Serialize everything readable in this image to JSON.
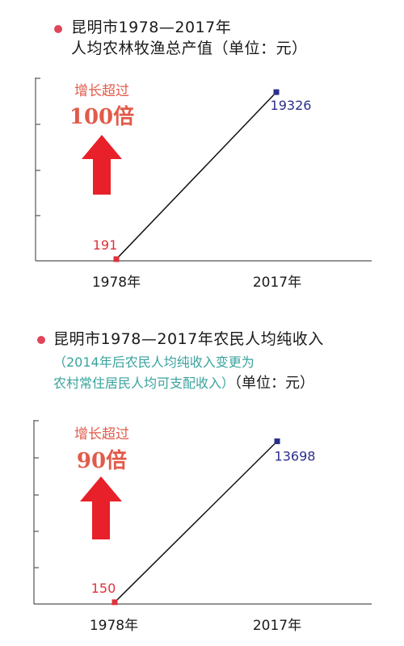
{
  "panels": [
    {
      "title_line1": "昆明市1978—2017年",
      "title_line2": "人均农林牧渔总产值（单位：元）",
      "growth_label_top": "增长超过",
      "growth_label_bottom": "100倍"
    },
    {
      "title_line1": "昆明市1978—2017年农民人均纯收入",
      "note_line1": "（2014年后农民人均纯收入变更为",
      "note_line2": "农村常住居民人均可支配收入）",
      "unit": "（单位：元）",
      "growth_label_top": "增长超过",
      "growth_label_bottom": "90倍"
    }
  ],
  "colors": {
    "bullet": "#e0465a",
    "start_point": "#e0303a",
    "end_point": "#2b2f8a",
    "arrow": "#e8202a",
    "note": "#3aa39e"
  },
  "chart_data": [
    {
      "type": "line",
      "title": "昆明市1978—2017年人均农林牧渔总产值（单位：元）",
      "categories": [
        "1978年",
        "2017年"
      ],
      "values": [
        191,
        19326
      ],
      "ylim": [
        0,
        21000
      ],
      "grid": false
    },
    {
      "type": "line",
      "title": "昆明市1978—2017年农民人均纯收入（单位：元）",
      "categories": [
        "1978年",
        "2017年"
      ],
      "values": [
        150,
        13698
      ],
      "ylim": [
        0,
        15500
      ],
      "grid": false
    }
  ]
}
